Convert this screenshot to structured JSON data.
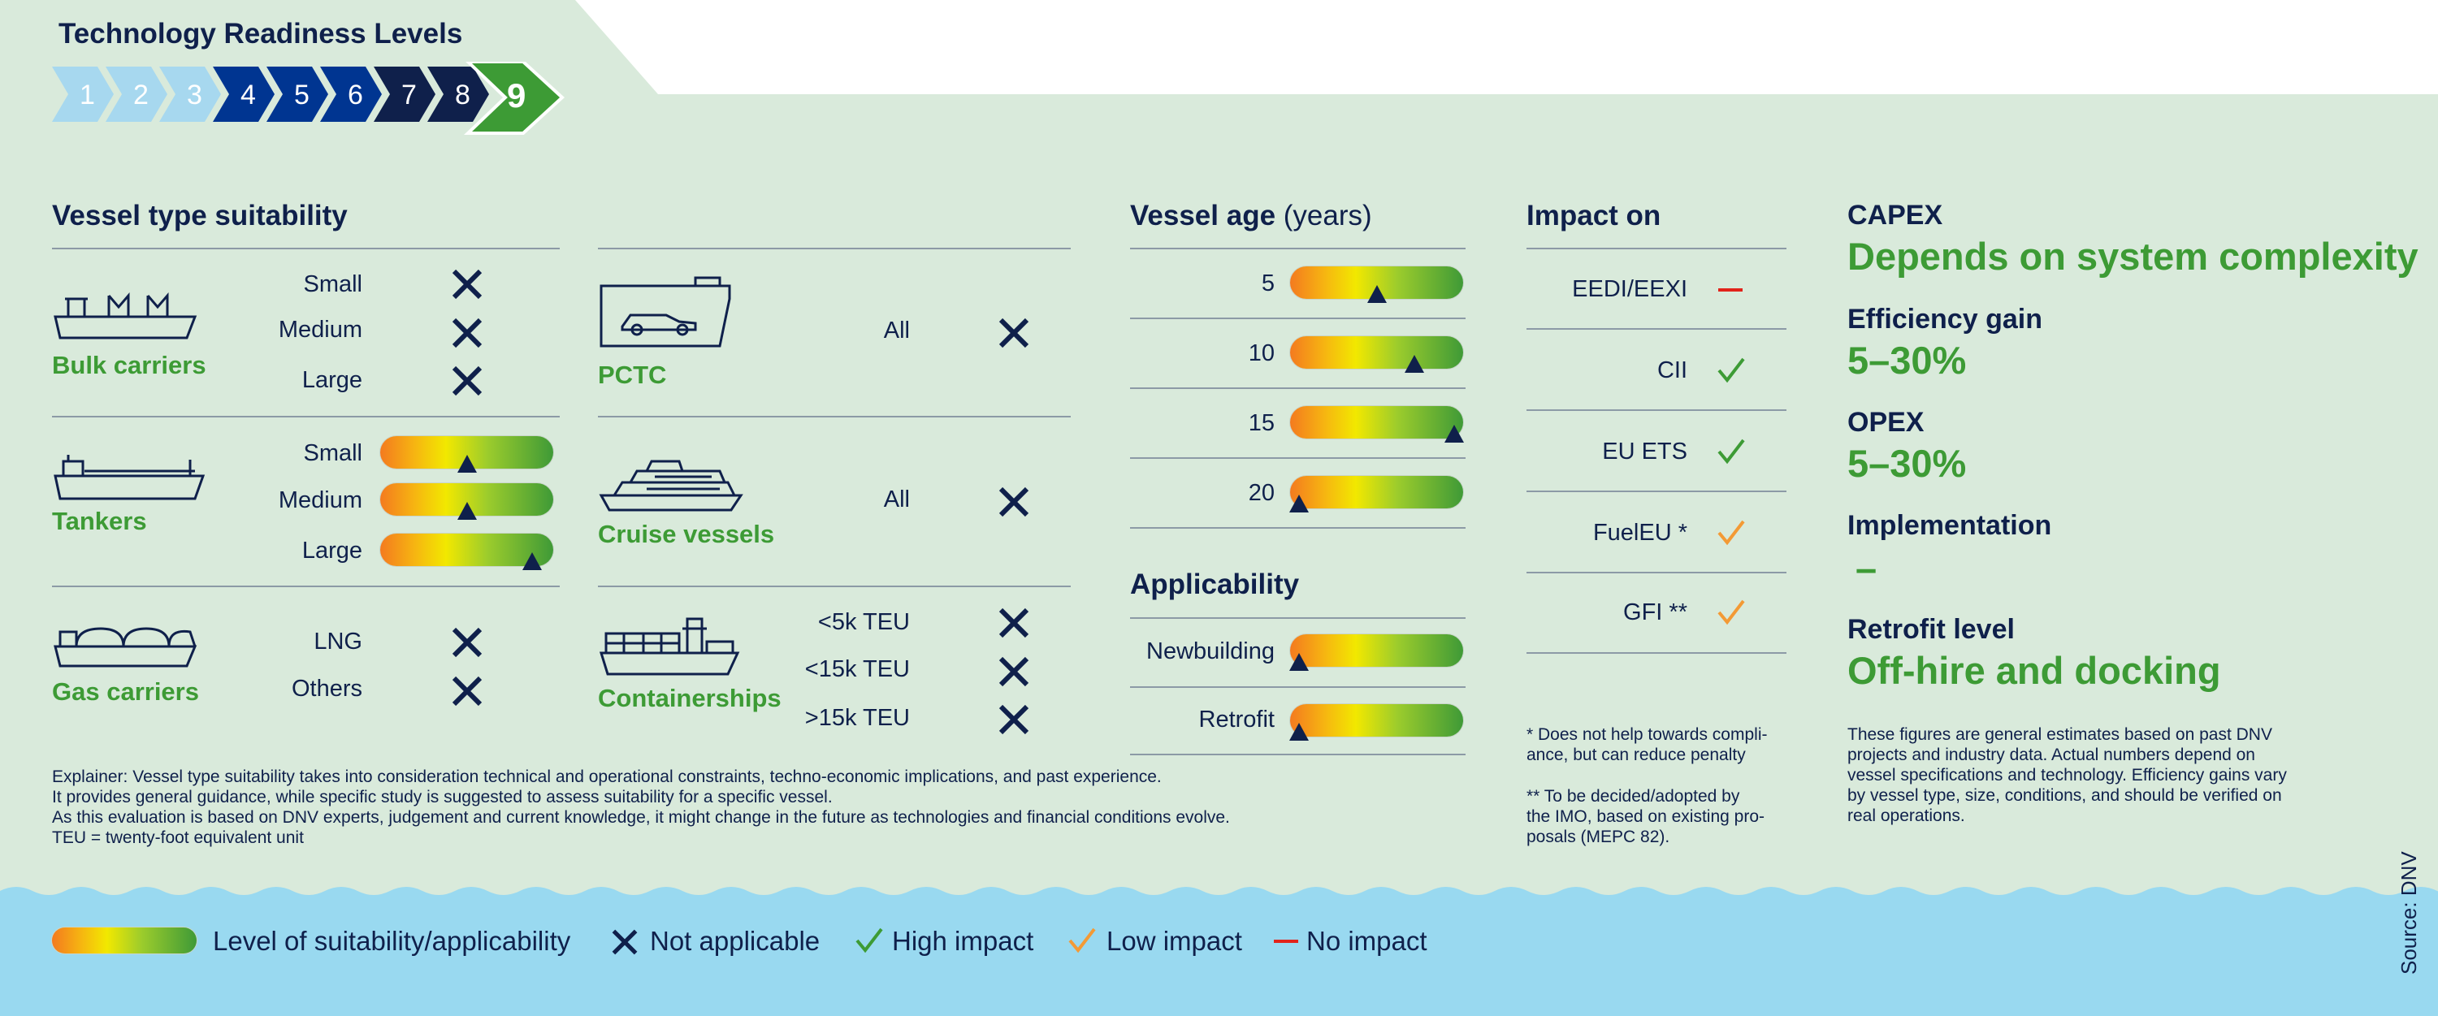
{
  "trl": {
    "title": "Technology Readiness Levels",
    "levels": [
      "1",
      "2",
      "3",
      "4",
      "5",
      "6",
      "7",
      "8",
      "9"
    ],
    "current": "9"
  },
  "vessel_type": {
    "title": "Vessel type suitability",
    "bulk": {
      "name": "Bulk carriers",
      "rows": [
        {
          "label": "Small",
          "mark": "not-applicable"
        },
        {
          "label": "Medium",
          "mark": "not-applicable"
        },
        {
          "label": "Large",
          "mark": "not-applicable"
        }
      ]
    },
    "tankers": {
      "name": "Tankers",
      "rows": [
        {
          "label": "Small",
          "level": 0.5
        },
        {
          "label": "Medium",
          "level": 0.5
        },
        {
          "label": "Large",
          "level": 0.88
        }
      ]
    },
    "gas": {
      "name": "Gas carriers",
      "rows": [
        {
          "label": "LNG",
          "mark": "not-applicable"
        },
        {
          "label": "Others",
          "mark": "not-applicable"
        }
      ]
    },
    "pctc": {
      "name": "PCTC",
      "rows": [
        {
          "label": "All",
          "mark": "not-applicable"
        }
      ]
    },
    "cruise": {
      "name": "Cruise vessels",
      "rows": [
        {
          "label": "All",
          "mark": "not-applicable"
        }
      ]
    },
    "container": {
      "name": "Containerships",
      "rows": [
        {
          "label": "<5k TEU",
          "mark": "not-applicable"
        },
        {
          "label": "<15k TEU",
          "mark": "not-applicable"
        },
        {
          "label": ">15k TEU",
          "mark": "not-applicable"
        }
      ]
    }
  },
  "vessel_age": {
    "title": "Vessel age",
    "unit": "(years)",
    "rows": [
      {
        "label": "5",
        "level": 0.5
      },
      {
        "label": "10",
        "level": 0.72
      },
      {
        "label": "15",
        "level": 0.95
      },
      {
        "label": "20",
        "level": 0.05
      }
    ]
  },
  "applicability": {
    "title": "Applicability",
    "rows": [
      {
        "label": "Newbuilding",
        "level": 0.05
      },
      {
        "label": "Retrofit",
        "level": 0.05
      }
    ]
  },
  "impact": {
    "title": "Impact on",
    "rows": [
      {
        "label": "EEDI/EEXI",
        "mark": "no-impact"
      },
      {
        "label": "CII",
        "mark": "high-impact"
      },
      {
        "label": "EU ETS",
        "mark": "high-impact"
      },
      {
        "label": "FuelEU *",
        "mark": "low-impact"
      },
      {
        "label": "GFI **",
        "mark": "low-impact"
      }
    ],
    "note1": "* Does not help towards compli-\nance, but can reduce penalty",
    "note2": "** To be decided/adopted by\nthe IMO, based on existing pro-\nposals (MEPC 82)."
  },
  "right": {
    "capex_label": "CAPEX",
    "capex_value": "Depends on system complexity",
    "eff_label": "Efficiency gain",
    "eff_value": "5–30%",
    "opex_label": "OPEX",
    "opex_value": "5–30%",
    "impl_label": "Implementation",
    "impl_value": "–",
    "retro_label": "Retrofit level",
    "retro_value": "Off-hire and docking",
    "note": "These figures are general estimates based on past DNV\nprojects and industry data. Actual numbers depend on\nvessel specifications and technology. Efficiency gains vary\nby vessel type, size, conditions, and should be verified on\nreal operations."
  },
  "explainer": "Explainer: Vessel type suitability takes into consideration technical and operational constraints, techno-economic implications, and past experience.\nIt provides general guidance, while specific study is suggested to assess suitability for a specific vessel.\nAs this evaluation is based on DNV experts, judgement and current knowledge, it might change in the future as technologies and financial conditions evolve.\nTEU = twenty-foot equivalent unit",
  "legend": {
    "suitability": "Level of suitability/applicability",
    "not_applicable": "Not applicable",
    "high": "High impact",
    "low": "Low impact",
    "none": "No impact"
  },
  "source": "Source: DNV",
  "colors": {
    "navy": "#0f204b",
    "green": "#3d9b35",
    "orange": "#f39a35",
    "red": "#e2231a",
    "water": "#99d9f0",
    "panel": "#d9eadb"
  }
}
